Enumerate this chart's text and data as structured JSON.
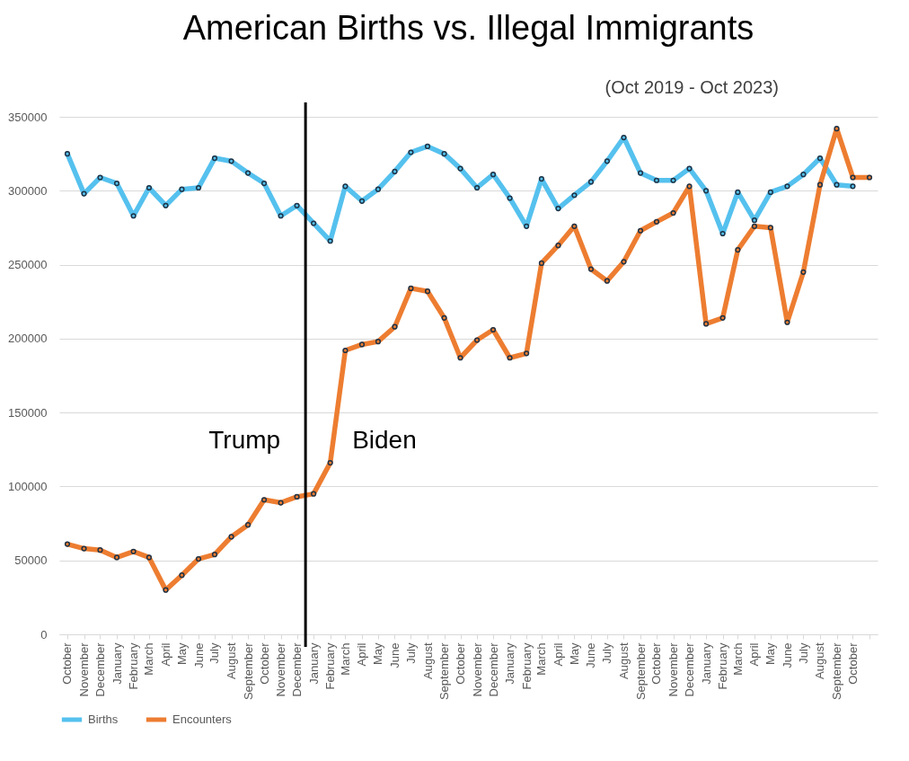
{
  "chart_data": {
    "type": "line",
    "title": "American Births vs. Illegal Immigrants",
    "subtitle": "(Oct 2019 - Oct 2023)",
    "x": [
      "2019-10",
      "2019-11",
      "2019-12",
      "2020-01",
      "2020-02",
      "2020-03",
      "2020-04",
      "2020-05",
      "2020-06",
      "2020-07",
      "2020-08",
      "2020-09",
      "2020-10",
      "2020-11",
      "2020-12",
      "2021-01",
      "2021-02",
      "2021-03",
      "2021-04",
      "2021-05",
      "2021-06",
      "2021-07",
      "2021-08",
      "2021-09",
      "2021-10",
      "2021-11",
      "2021-12",
      "2022-01",
      "2022-02",
      "2022-03",
      "2022-04",
      "2022-05",
      "2022-06",
      "2022-07",
      "2022-08",
      "2022-09",
      "2022-10",
      "2022-11",
      "2022-12",
      "2023-01",
      "2023-02",
      "2023-03",
      "2023-04",
      "2023-05",
      "2023-06",
      "2023-07",
      "2023-08",
      "2023-09",
      "2023-10",
      "2023-11"
    ],
    "series": [
      {
        "name": "Births",
        "color": "#55c1ee",
        "values": [
          325000,
          298000,
          309000,
          305000,
          283000,
          302000,
          290000,
          301000,
          302000,
          322000,
          320000,
          312000,
          305000,
          283000,
          290000,
          278000,
          266000,
          303000,
          293000,
          301000,
          313000,
          326000,
          330000,
          325000,
          315000,
          302000,
          311000,
          295000,
          276000,
          308000,
          288000,
          297000,
          306000,
          320000,
          336000,
          312000,
          307000,
          307000,
          315000,
          300000,
          271000,
          299000,
          280000,
          299000,
          303000,
          311000,
          322000,
          304000,
          303000,
          null
        ]
      },
      {
        "name": "Encounters",
        "color": "#ed7d31",
        "values": [
          61000,
          58000,
          57000,
          52000,
          56000,
          52000,
          30000,
          40000,
          51000,
          54000,
          66000,
          74000,
          91000,
          89000,
          93000,
          95000,
          116000,
          192000,
          196000,
          198000,
          208000,
          234000,
          232000,
          214000,
          187000,
          199000,
          206000,
          187000,
          190000,
          251000,
          263000,
          276000,
          247000,
          239000,
          252000,
          273000,
          279000,
          285000,
          303000,
          210000,
          214000,
          260000,
          276000,
          275000,
          211000,
          245000,
          304000,
          342000,
          309000,
          309000
        ]
      }
    ],
    "xlim": [
      "2019-09-16",
      "2023-11-16"
    ],
    "xticks": [
      {
        "value": "2019-10",
        "label": "October"
      },
      {
        "value": "2019-11",
        "label": "November"
      },
      {
        "value": "2019-12",
        "label": "December"
      },
      {
        "value": "2020-01",
        "label": "January"
      },
      {
        "value": "2020-02",
        "label": "February"
      },
      {
        "value": "2020-03",
        "label": "March"
      },
      {
        "value": "2020-04",
        "label": "April"
      },
      {
        "value": "2020-05",
        "label": "May"
      },
      {
        "value": "2020-06",
        "label": "June"
      },
      {
        "value": "2020-07",
        "label": "July"
      },
      {
        "value": "2020-08",
        "label": "August"
      },
      {
        "value": "2020-09",
        "label": "September"
      },
      {
        "value": "2020-10",
        "label": "October"
      },
      {
        "value": "2020-11",
        "label": "November"
      },
      {
        "value": "2020-12",
        "label": "December"
      },
      {
        "value": "2021-01",
        "label": "January"
      },
      {
        "value": "2021-02",
        "label": "February"
      },
      {
        "value": "2021-03",
        "label": "March"
      },
      {
        "value": "2021-04",
        "label": "April"
      },
      {
        "value": "2021-05",
        "label": "May"
      },
      {
        "value": "2021-06",
        "label": "June"
      },
      {
        "value": "2021-07",
        "label": "July"
      },
      {
        "value": "2021-08",
        "label": "August"
      },
      {
        "value": "2021-09",
        "label": "September"
      },
      {
        "value": "2021-10",
        "label": "October"
      },
      {
        "value": "2021-11",
        "label": "November"
      },
      {
        "value": "2021-12",
        "label": "December"
      },
      {
        "value": "2022-01",
        "label": "January"
      },
      {
        "value": "2022-02",
        "label": "February"
      },
      {
        "value": "2022-03",
        "label": "March"
      },
      {
        "value": "2022-04",
        "label": "April"
      },
      {
        "value": "2022-05",
        "label": "May"
      },
      {
        "value": "2022-06",
        "label": "June"
      },
      {
        "value": "2022-07",
        "label": "July"
      },
      {
        "value": "2022-08",
        "label": "August"
      },
      {
        "value": "2022-09",
        "label": "September"
      },
      {
        "value": "2022-10",
        "label": "October"
      },
      {
        "value": "2022-11",
        "label": "November"
      },
      {
        "value": "2022-12",
        "label": "December"
      },
      {
        "value": "2023-01",
        "label": "January"
      },
      {
        "value": "2023-02",
        "label": "February"
      },
      {
        "value": "2023-03",
        "label": "March"
      },
      {
        "value": "2023-04",
        "label": "April"
      },
      {
        "value": "2023-05",
        "label": "May"
      },
      {
        "value": "2023-06",
        "label": "June"
      },
      {
        "value": "2023-07",
        "label": "July"
      },
      {
        "value": "2023-08",
        "label": "August"
      },
      {
        "value": "2023-09",
        "label": "September"
      },
      {
        "value": "2023-10",
        "label": "October"
      },
      {
        "value": "2023-11",
        "label": null
      }
    ],
    "ylim": [
      0,
      350000
    ],
    "yticks": [
      0,
      50000,
      100000,
      150000,
      200000,
      250000,
      300000,
      350000
    ],
    "ref_lines": [
      {
        "axis": "x",
        "value": "2020-12-17",
        "color": "#000000"
      }
    ],
    "annotations": [
      "Trump",
      "Biden"
    ],
    "grid": "y",
    "legend": "bottom",
    "marker": "circle",
    "line_style": "solid"
  }
}
